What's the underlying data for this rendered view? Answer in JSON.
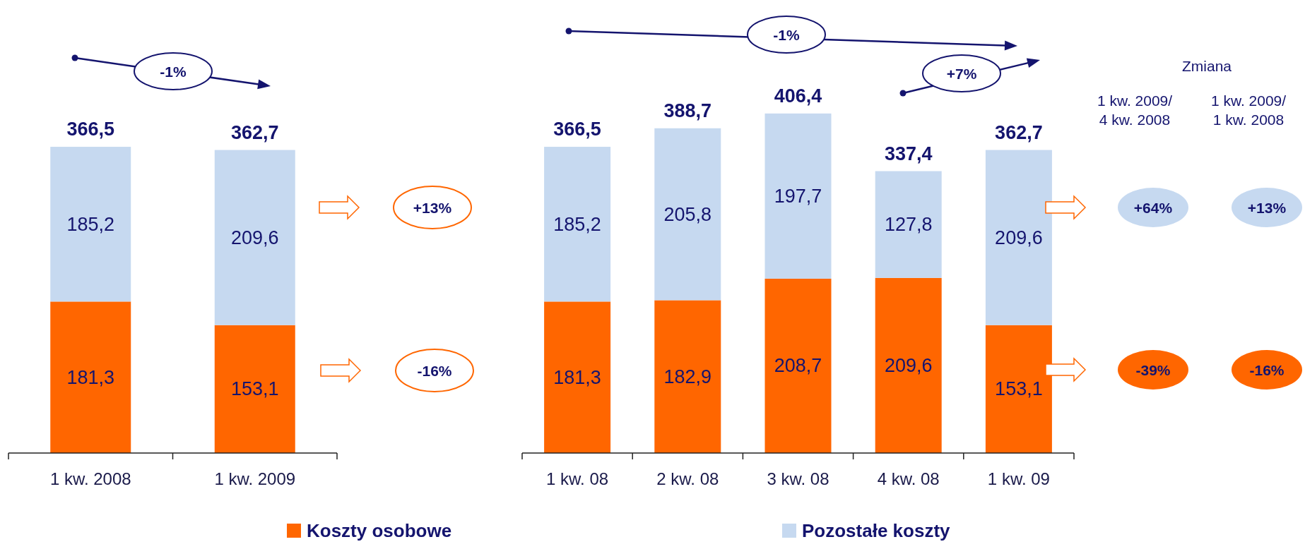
{
  "chart_data": [
    {
      "type": "bar",
      "stacked": true,
      "categories": [
        "1 kw. 2008",
        "1 kw. 2009"
      ],
      "series": [
        {
          "name": "Koszty osobowe",
          "color": "#ff6600",
          "values": [
            181.3,
            153.1
          ],
          "value_labels": [
            "181,3",
            "153,1"
          ]
        },
        {
          "name": "Pozostałe koszty",
          "color": "#c6d9f0",
          "values": [
            185.2,
            209.6
          ],
          "value_labels": [
            "185,2",
            "209,6"
          ]
        }
      ],
      "totals": [
        "366,5",
        "362,7"
      ],
      "legend": "bottom",
      "annotations": [
        "-1%",
        "+13%",
        "-16%"
      ]
    },
    {
      "type": "bar",
      "stacked": true,
      "categories": [
        "1 kw. 08",
        "2 kw. 08",
        "3 kw. 08",
        "4 kw. 08",
        "1 kw. 09"
      ],
      "series": [
        {
          "color": "#ff6600",
          "values": [
            181.3,
            182.9,
            208.7,
            209.6,
            153.1
          ],
          "value_labels": [
            "181,3",
            "182,9",
            "208,7",
            "209,6",
            "153,1"
          ]
        },
        {
          "color": "#c6d9f0",
          "values": [
            185.2,
            205.8,
            197.7,
            127.8,
            209.6
          ],
          "value_labels": [
            "185,2",
            "205,8",
            "197,7",
            "127,8",
            "209,6"
          ]
        }
      ],
      "totals": [
        "366,5",
        "388,7",
        "406,4",
        "337,4",
        "362,7"
      ],
      "annotations": [
        "-1%",
        "+7%",
        "Zmiana",
        "1 kw. 2009/\n4 kw. 2008",
        "1 kw. 2009/\n1 kw. 2008",
        "+64%",
        "+13%",
        "-39%",
        "-16%"
      ]
    }
  ]
}
